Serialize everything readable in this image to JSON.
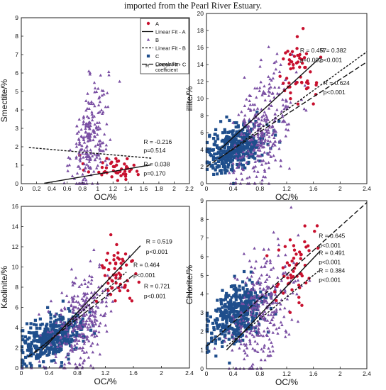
{
  "caption": "imported from the Pearl River Estuary.",
  "colors": {
    "A": "#c8102e",
    "B": "#7a4fa3",
    "C": "#1f4e8c",
    "line": "#111111"
  },
  "legend": {
    "items": [
      {
        "key": "A",
        "label": "A",
        "marker": "circle"
      },
      {
        "key": "fitA",
        "label": "Linear Fit - A",
        "line": "solid"
      },
      {
        "key": "B",
        "label": "B",
        "marker": "triangle"
      },
      {
        "key": "fitB",
        "label": "Linear Fit - B",
        "line": "dashed"
      },
      {
        "key": "C",
        "label": "C",
        "marker": "square"
      },
      {
        "key": "fitC",
        "label": "Linear Fit - C",
        "line": "longdash"
      }
    ],
    "r_symbol": "R",
    "r_desc_1": "Correlation",
    "r_desc_2": "coefficient"
  },
  "chart_data": [
    {
      "type": "scatter",
      "ylabel": "Smectite/%",
      "xlabel": "OC/%",
      "xlim": [
        0,
        2.2
      ],
      "ylim": [
        0,
        9
      ],
      "xticks": [
        "0",
        "0.2",
        "0.4",
        "0.6",
        "0.8",
        "1",
        "1.2",
        "1.4",
        "1.6",
        "1.8",
        "2",
        "2.2"
      ],
      "yticks": [
        "0",
        "1",
        "2",
        "3",
        "4",
        "5",
        "6",
        "7",
        "8",
        "9"
      ],
      "series": [
        {
          "name": "A",
          "cx": 1.2,
          "cy": 0.85,
          "sx": 0.18,
          "sy": 0.35,
          "n": 45
        },
        {
          "name": "B",
          "cx": 0.9,
          "cy": 2.4,
          "sx": 0.12,
          "sy": 1.4,
          "n": 240
        }
      ],
      "fits": [
        {
          "series": "B",
          "style": "dashed",
          "x": [
            0.1,
            1.7
          ],
          "y": [
            1.96,
            1.38
          ]
        },
        {
          "series": "A",
          "style": "solid",
          "x": [
            0.3,
            1.7
          ],
          "y": [
            0.02,
            1.02
          ]
        }
      ],
      "annotations": [
        {
          "text": "R = -0.216",
          "x": 1.6,
          "y": 2.15
        },
        {
          "text": "p=0.514",
          "x": 1.6,
          "y": 1.7
        },
        {
          "text": "R = 0.038",
          "x": 1.6,
          "y": 0.95
        },
        {
          "text": "p=0.170",
          "x": 1.6,
          "y": 0.45
        }
      ]
    },
    {
      "type": "scatter",
      "ylabel": "illite/%",
      "xlabel": "OC/%",
      "xlim": [
        0,
        2.4
      ],
      "ylim": [
        0,
        20
      ],
      "xticks": [
        "0",
        "0.4",
        "0.8",
        "1.2",
        "1.6",
        "2",
        "2.4"
      ],
      "yticks": [
        "0",
        "2",
        "4",
        "6",
        "8",
        "10",
        "12",
        "14",
        "16",
        "18",
        "20"
      ],
      "series": [
        {
          "name": "C",
          "cx": 0.45,
          "cy": 4.3,
          "sx": 0.22,
          "sy": 1.3,
          "n": 420
        },
        {
          "name": "B",
          "cx": 0.85,
          "cy": 6.5,
          "sx": 0.22,
          "sy": 3.2,
          "n": 300
        },
        {
          "name": "A",
          "cx": 1.35,
          "cy": 12.8,
          "sx": 0.14,
          "sy": 2.3,
          "n": 55
        }
      ],
      "fits": [
        {
          "series": "A",
          "style": "solid",
          "x": [
            0.2,
            1.7
          ],
          "y": [
            4.0,
            14.8
          ]
        },
        {
          "series": "B",
          "style": "dashed",
          "x": [
            0.2,
            2.4
          ],
          "y": [
            3.0,
            15.5
          ]
        },
        {
          "series": "C",
          "style": "longdash",
          "x": [
            0.0,
            2.4
          ],
          "y": [
            2.0,
            14.3
          ]
        }
      ],
      "annotations": [
        {
          "text": "R = 0.457",
          "x": 1.4,
          "y": 15.4
        },
        {
          "text": "p=0.002",
          "x": 1.4,
          "y": 14.3
        },
        {
          "text": "R = 0.382",
          "x": 1.7,
          "y": 15.4
        },
        {
          "text": "p<0.001",
          "x": 1.7,
          "y": 14.3
        },
        {
          "text": "R = 0.624",
          "x": 1.75,
          "y": 11.6
        },
        {
          "text": "p<0.001",
          "x": 1.75,
          "y": 10.5
        }
      ]
    },
    {
      "type": "scatter",
      "ylabel": "Kaolinite/%",
      "xlabel": "OC/%",
      "xlim": [
        0,
        2.4
      ],
      "ylim": [
        0,
        16
      ],
      "xticks": [
        "0",
        "0.4",
        "0.8",
        "1.2",
        "1.6",
        "2",
        "2.4"
      ],
      "yticks": [
        "0",
        "2",
        "4",
        "6",
        "8",
        "10",
        "12",
        "14",
        "16"
      ],
      "series": [
        {
          "name": "C",
          "cx": 0.45,
          "cy": 3.0,
          "sx": 0.22,
          "sy": 1.0,
          "n": 420
        },
        {
          "name": "B",
          "cx": 0.85,
          "cy": 4.5,
          "sx": 0.22,
          "sy": 2.3,
          "n": 300
        },
        {
          "name": "A",
          "cx": 1.35,
          "cy": 9.5,
          "sx": 0.14,
          "sy": 1.8,
          "n": 55
        }
      ],
      "fits": [
        {
          "series": "A",
          "style": "solid",
          "x": [
            0.3,
            1.7
          ],
          "y": [
            1.8,
            12.1
          ]
        },
        {
          "series": "B",
          "style": "dashed",
          "x": [
            0.2,
            1.5
          ],
          "y": [
            1.5,
            9.5
          ]
        },
        {
          "series": "C",
          "style": "longdash",
          "x": [
            0.1,
            1.6
          ],
          "y": [
            1.1,
            9.2
          ]
        }
      ],
      "annotations": [
        {
          "text": "R = 0.519",
          "x": 1.78,
          "y": 12.3
        },
        {
          "text": "p<0.001",
          "x": 1.78,
          "y": 11.3
        },
        {
          "text": "R = 0.464",
          "x": 1.6,
          "y": 10.0
        },
        {
          "text": "p<0.001",
          "x": 1.6,
          "y": 9.0
        },
        {
          "text": "R = 0.721",
          "x": 1.75,
          "y": 7.9
        },
        {
          "text": "p<0.001",
          "x": 1.75,
          "y": 6.9
        }
      ]
    },
    {
      "type": "scatter",
      "ylabel": "Chlorite/%",
      "xlabel": "OC/%",
      "xlim": [
        0,
        2.4
      ],
      "ylim": [
        0,
        9
      ],
      "xticks": [
        "0",
        "0.4",
        "0.8",
        "1.2",
        "1.6",
        "2",
        "2.4"
      ],
      "yticks": [
        "0",
        "1",
        "2",
        "3",
        "4",
        "5",
        "6",
        "7",
        "8",
        "9"
      ],
      "series": [
        {
          "name": "C",
          "cx": 0.45,
          "cy": 2.9,
          "sx": 0.22,
          "sy": 0.75,
          "n": 420
        },
        {
          "name": "B",
          "cx": 0.85,
          "cy": 3.2,
          "sx": 0.22,
          "sy": 1.5,
          "n": 300
        },
        {
          "name": "A",
          "cx": 1.35,
          "cy": 5.4,
          "sx": 0.14,
          "sy": 1.1,
          "n": 55
        }
      ],
      "fits": [
        {
          "series": "C",
          "style": "longdash",
          "x": [
            0.0,
            2.4
          ],
          "y": [
            1.2,
            8.9
          ]
        },
        {
          "series": "A",
          "style": "solid",
          "x": [
            0.3,
            1.7
          ],
          "y": [
            1.0,
            6.3
          ]
        },
        {
          "series": "B",
          "style": "dashed",
          "x": [
            0.3,
            1.7
          ],
          "y": [
            1.2,
            5.3
          ]
        }
      ],
      "annotations": [
        {
          "text": "R = 0.645",
          "x": 1.68,
          "y": 7.0
        },
        {
          "text": "p<0.001",
          "x": 1.68,
          "y": 6.5
        },
        {
          "text": "R = 0.491",
          "x": 1.68,
          "y": 6.1
        },
        {
          "text": "p<0.001",
          "x": 1.68,
          "y": 5.6
        },
        {
          "text": "R = 0.384",
          "x": 1.68,
          "y": 5.15
        },
        {
          "text": "p<0.001",
          "x": 1.68,
          "y": 4.65
        }
      ]
    }
  ]
}
